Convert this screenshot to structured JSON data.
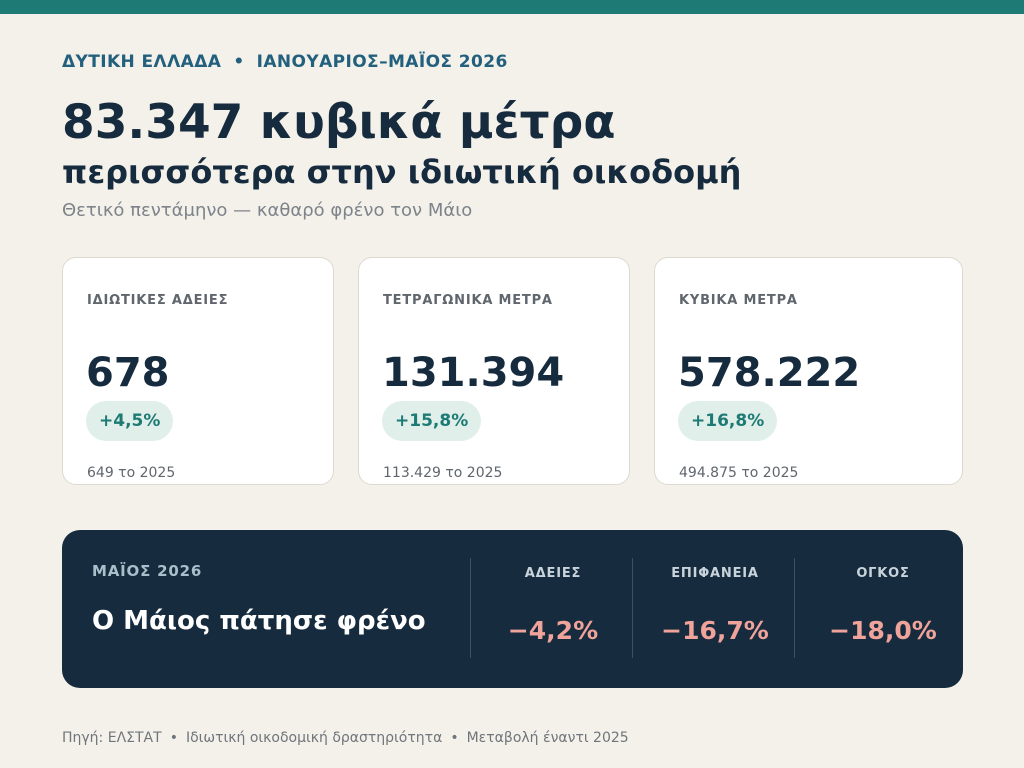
{
  "header": {
    "region": "ΔΥΤΙΚΗ ΕΛΛΑΔΑ",
    "separator": "•",
    "period": "ΙΑΝΟΥΑΡΙΟΣ–ΜΑΪΟΣ 2026",
    "headline": "83.347 κυβικά μέτρα",
    "subheadline": "περισσότερα στην ιδιωτική οικοδομή",
    "tagline": "Θετικό πεντάμηνο — καθαρό φρένο τον Μάιο"
  },
  "cards": [
    {
      "label": "ΙΔΙΩΤΙΚΕΣ ΑΔΕΙΕΣ",
      "value": "678",
      "change": "+4,5%",
      "previous": "649 το 2025"
    },
    {
      "label": "ΤΕΤΡΑΓΩΝΙΚΑ ΜΕΤΡΑ",
      "value": "131.394",
      "change": "+15,8%",
      "previous": "113.429 το 2025"
    },
    {
      "label": "ΚΥΒΙΚΑ ΜΕΤΡΑ",
      "value": "578.222",
      "change": "+16,8%",
      "previous": "494.875 το 2025"
    }
  ],
  "may_panel": {
    "kicker": "ΜΑΪΟΣ 2026",
    "title": "Ο Μάιος πάτησε φρένο",
    "metrics": [
      {
        "label": "ΑΔΕΙΕΣ",
        "value": "−4,2%"
      },
      {
        "label": "ΕΠΙΦΑΝΕΙΑ",
        "value": "−16,7%"
      },
      {
        "label": "ΟΓΚΟΣ",
        "value": "−18,0%"
      }
    ]
  },
  "footer": {
    "source": "Πηγή: ΕΛΣΤΑΤ",
    "topic": "Ιδιωτική οικοδομική δραστηριότητα",
    "comparison": "Μεταβολή έναντι 2025",
    "separator": "•"
  },
  "colors": {
    "accent": "#1d7a74",
    "navy": "#162b3d",
    "negative": "#f0a39a",
    "background": "#f4f1ea"
  }
}
